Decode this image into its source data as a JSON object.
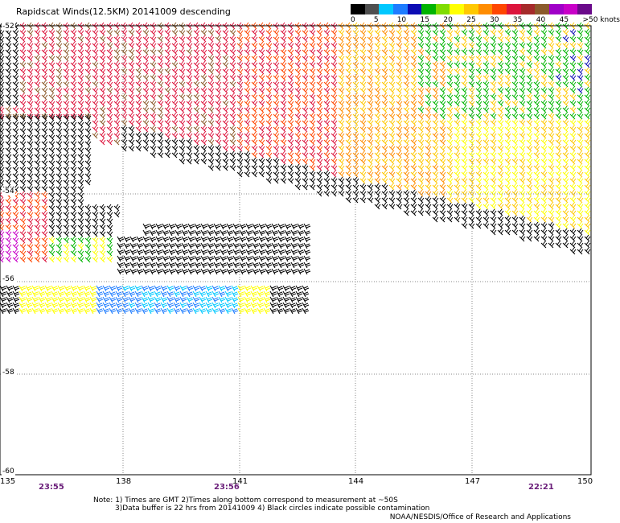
{
  "title": "Rapidscat Winds(12.5KM) 20141009 descending",
  "legend": {
    "labels": [
      "0",
      "5",
      "10",
      "15",
      "20",
      "25",
      "30",
      "35",
      "40",
      "45",
      ">50 knots"
    ],
    "colors": [
      "#000000",
      "#4f4f4f",
      "#00c8ff",
      "#1e7cff",
      "#0c0cb4",
      "#00b400",
      "#7fdc00",
      "#ffff00",
      "#ffc800",
      "#ff8c00",
      "#ff4600",
      "#dc143c",
      "#a52a2a",
      "#8b5a2b",
      "#a000c8",
      "#c800c8",
      "#6a0a8a"
    ]
  },
  "axes": {
    "lat_labels": [
      "-52",
      "-54",
      "-56",
      "-58",
      "-60"
    ],
    "lon_labels": [
      "135",
      "138",
      "141",
      "144",
      "147",
      "150"
    ]
  },
  "times": [
    "23:55",
    "23:56",
    "22:21"
  ],
  "notes": [
    "Note: 1) Times are GMT 2)Times along bottom correspond to measurement at ~50S",
    "3)Data buffer is 22 hrs from 20141009 4) Black circles indicate possible contamination"
  ],
  "credit": "NOAA/NESDIS/Office of Research and Applications"
}
